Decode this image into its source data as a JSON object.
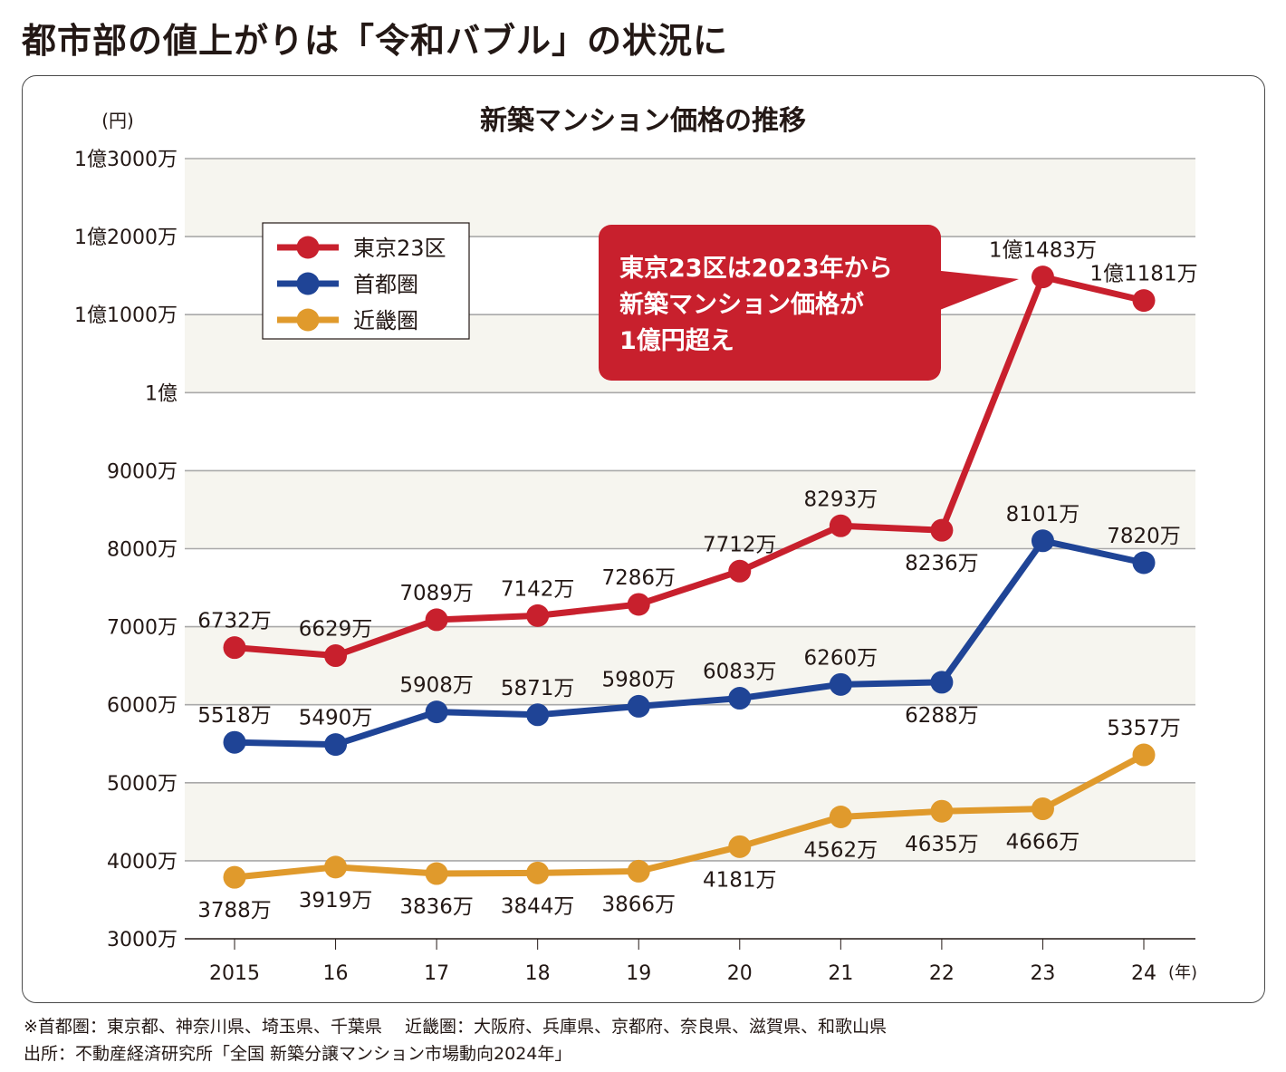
{
  "headline": "都市部の値上がりは「令和バブル」の状況に",
  "chart_data": {
    "type": "line",
    "title": "新築マンション価格の推移",
    "ylabel": "(円)",
    "xlabel": "(年)",
    "unit": "万円",
    "ylim": [
      3000,
      13000
    ],
    "yticks": [
      3000,
      4000,
      5000,
      6000,
      7000,
      8000,
      9000,
      10000,
      11000,
      12000,
      13000
    ],
    "ytick_labels": [
      "3000万",
      "4000万",
      "5000万",
      "6000万",
      "7000万",
      "8000万",
      "9000万",
      "1億",
      "1億1000万",
      "1億2000万",
      "1億3000万"
    ],
    "categories": [
      "2015",
      "16",
      "17",
      "18",
      "19",
      "20",
      "21",
      "22",
      "23",
      "24"
    ],
    "grid": true,
    "alternating_bands": true,
    "legend_position": "top-left",
    "series": [
      {
        "name": "東京23区",
        "color": "#c8202d",
        "values": [
          6732,
          6629,
          7089,
          7142,
          7286,
          7712,
          8293,
          8236,
          11483,
          11181
        ],
        "labels": [
          "6732万",
          "6629万",
          "7089万",
          "7142万",
          "7286万",
          "7712万",
          "8293万",
          "8236万",
          "1億1483万",
          "1億1181万"
        ],
        "label_pos": [
          "above",
          "above",
          "above",
          "above",
          "above",
          "above",
          "above",
          "below",
          "above",
          "above"
        ]
      },
      {
        "name": "首都圏",
        "color": "#1f4496",
        "values": [
          5518,
          5490,
          5908,
          5871,
          5980,
          6083,
          6260,
          6288,
          8101,
          7820
        ],
        "labels": [
          "5518万",
          "5490万",
          "5908万",
          "5871万",
          "5980万",
          "6083万",
          "6260万",
          "6288万",
          "8101万",
          "7820万"
        ],
        "label_pos": [
          "above",
          "above",
          "above",
          "above",
          "above",
          "above",
          "above",
          "below",
          "above",
          "above"
        ]
      },
      {
        "name": "近畿圏",
        "color": "#e09a2c",
        "values": [
          3788,
          3919,
          3836,
          3844,
          3866,
          4181,
          4562,
          4635,
          4666,
          5357
        ],
        "labels": [
          "3788万",
          "3919万",
          "3836万",
          "3844万",
          "3866万",
          "4181万",
          "4562万",
          "4635万",
          "4666万",
          "5357万"
        ],
        "label_pos": [
          "below",
          "below",
          "below",
          "below",
          "below",
          "below",
          "below",
          "below",
          "below",
          "above"
        ]
      }
    ],
    "annotation": {
      "lines": [
        "東京23区は2023年から",
        "新築マンション価格が",
        "1億円超え"
      ],
      "color": "#c8202d",
      "points_to": "23"
    }
  },
  "footnotes": {
    "regions": "※首都圏：東京都、神奈川県、埼玉県、千葉県　 近畿圏：大阪府、兵庫県、京都府、奈良県、滋賀県、和歌山県",
    "source": "出所：不動産経済研究所「全国 新築分譲マンション市場動向2024年」"
  }
}
